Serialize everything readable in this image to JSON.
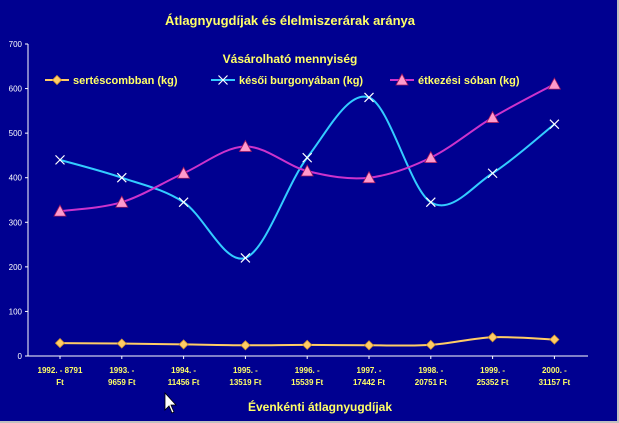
{
  "chart_data": {
    "type": "line",
    "title": "Átlagnyugdíjak és élelmiszerárak aránya",
    "legend_title": "Vásárolható mennyiség",
    "xlabel": "Évenkénti átlagnyugdíjak",
    "ylabel": "",
    "ylim": [
      0,
      700
    ],
    "yticks": [
      0,
      100,
      200,
      300,
      400,
      500,
      600,
      700
    ],
    "grid": false,
    "legend_position": "top",
    "smooth": true,
    "categories": [
      [
        "1992. - 8791",
        "Ft"
      ],
      [
        "1993. -",
        "9659 Ft"
      ],
      [
        "1994. -",
        "11456 Ft"
      ],
      [
        "1995. -",
        "13519 Ft"
      ],
      [
        "1996. -",
        "15539 Ft"
      ],
      [
        "1997. -",
        "17442 Ft"
      ],
      [
        "1998. -",
        "20751 Ft"
      ],
      [
        "1999. -",
        "25352 Ft"
      ],
      [
        "2000. -",
        "31157 Ft"
      ]
    ],
    "series": [
      {
        "name": "sertéscombban (kg)",
        "color": "#ffcc66",
        "marker": "diamond",
        "values": [
          29,
          28,
          26,
          24,
          25,
          24,
          25,
          42,
          37
        ]
      },
      {
        "name": "késői burgonyában (kg)",
        "color": "#33ccff",
        "marker": "x",
        "values": [
          440,
          400,
          345,
          220,
          445,
          580,
          345,
          410,
          520
        ]
      },
      {
        "name": "étkezési sóban (kg)",
        "color": "#cc33cc",
        "marker": "triangle",
        "values": [
          325,
          345,
          410,
          470,
          415,
          400,
          445,
          535,
          610
        ]
      }
    ]
  }
}
